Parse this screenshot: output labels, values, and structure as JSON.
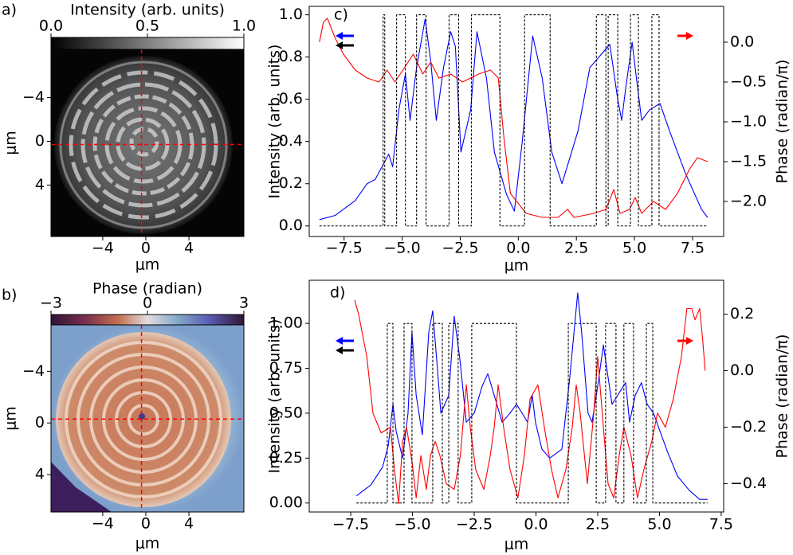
{
  "chart_data": [
    {
      "type": "image",
      "panel_label": "a)",
      "colorbar": {
        "label": "Intensity (arb. units)",
        "lim": [
          0,
          1
        ],
        "ticks": [
          {
            "value": 0,
            "label": "0.0"
          },
          0.5,
          {
            "value": 1,
            "label": "1.0"
          }
        ]
      },
      "xlabel": "μm",
      "ylabel": "μm",
      "xlim": [
        -8.8,
        9.1
      ],
      "xticks": [
        {
          "value": -4,
          "label": "−4"
        },
        0,
        4
      ],
      "ylim": [
        8.7,
        -8.4
      ],
      "yticks": [
        {
          "value": -4,
          "label": "−4"
        },
        0,
        4
      ],
      "crosshair": {
        "x": -0.4,
        "y": 0.3,
        "color": "#ff0000"
      }
    },
    {
      "type": "image",
      "panel_label": "b)",
      "colorbar": {
        "label": "Phase (radian)",
        "lim": [
          -3,
          3
        ],
        "ticks": [
          {
            "value": -3,
            "label": "−3"
          },
          0,
          3
        ]
      },
      "xlabel": "μm",
      "ylabel": "μm",
      "xlim": [
        -8.8,
        9.1
      ],
      "xticks": [
        {
          "value": -4,
          "label": "−4"
        },
        0,
        4
      ],
      "ylim": [
        6.9,
        -7.6
      ],
      "yticks": [
        {
          "value": -4,
          "label": "−4"
        },
        0,
        4
      ],
      "crosshair": {
        "x": -0.4,
        "y": -0.3,
        "color": "#ff0000"
      }
    },
    {
      "type": "line",
      "panel_label": "c)",
      "xlabel": "μm",
      "ylabel": "Intensity (arb. units)",
      "y2label": "Phase (radian/π)",
      "xlim": [
        -9.0,
        8.84
      ],
      "xticks": [
        {
          "value": -7.5,
          "label": "−7.5"
        },
        {
          "value": -5,
          "label": "−5.0"
        },
        {
          "value": -2.5,
          "label": "−2.5"
        },
        {
          "value": 0,
          "label": "0.0"
        },
        2.5,
        {
          "value": 5,
          "label": "5.0"
        },
        7.5
      ],
      "ylim": [
        -0.05,
        1.04
      ],
      "yticks": [
        {
          "value": 0,
          "label": "0.0"
        },
        0.2,
        0.4,
        0.6,
        0.8,
        {
          "value": 1,
          "label": "1.0"
        }
      ],
      "y2lim": [
        -2.44,
        0.45
      ],
      "y2ticks": [
        {
          "value": 0,
          "label": "0.0"
        },
        {
          "value": -0.5,
          "label": "−0.5"
        },
        {
          "value": -1,
          "label": "−1.0"
        },
        {
          "value": -1.5,
          "label": "−1.5"
        },
        {
          "value": -2,
          "label": "−2.0"
        }
      ],
      "series": [
        {
          "color": "#0000ff",
          "x": [
            -8.56,
            -7.88,
            -7.02,
            -6.51,
            -6.16,
            -5.58,
            -5.41,
            -5.14,
            -4.86,
            -4.66,
            -4.38,
            -4.01,
            -3.77,
            -3.53,
            -3.22,
            -2.91,
            -2.71,
            -2.47,
            -2.05,
            -1.78,
            -1.37,
            -1.03,
            -0.51,
            -0.17,
            0.17,
            0.62,
            1.03,
            1.44,
            1.88,
            2.57,
            3.08,
            3.94,
            4.28,
            4.45,
            4.62,
            4.9,
            5.14,
            5.31,
            5.65,
            6.1,
            6.51,
            7.19,
            7.88,
            8.15
          ],
          "values": [
            0.03,
            0.05,
            0.12,
            0.2,
            0.22,
            0.34,
            0.28,
            0.55,
            0.72,
            0.5,
            0.75,
            0.98,
            0.78,
            0.5,
            0.75,
            0.92,
            0.85,
            0.35,
            0.55,
            0.92,
            0.7,
            0.35,
            0.15,
            0.07,
            0.4,
            0.9,
            0.7,
            0.35,
            0.2,
            0.45,
            0.75,
            0.86,
            0.6,
            0.5,
            0.65,
            0.87,
            0.65,
            0.5,
            0.55,
            0.58,
            0.45,
            0.25,
            0.08,
            0.04
          ]
        },
        {
          "color": "#ff0000",
          "axis": "y2",
          "x": [
            -8.56,
            -8.39,
            -8.22,
            -7.88,
            -7.53,
            -7.02,
            -6.51,
            -5.99,
            -5.65,
            -5.31,
            -4.97,
            -4.52,
            -4.11,
            -3.77,
            -3.42,
            -2.91,
            -2.4,
            -1.71,
            -1.2,
            -0.86,
            -0.62,
            -0.34,
            0.34,
            1.03,
            1.71,
            2.12,
            2.4,
            3.25,
            3.77,
            4.11,
            4.38,
            4.79,
            5.03,
            5.31,
            5.82,
            6.34,
            6.85,
            7.36,
            7.71,
            8.15
          ],
          "values": [
            0.0,
            0.25,
            0.3,
            0.05,
            -0.15,
            -0.35,
            -0.45,
            -0.5,
            -0.35,
            -0.5,
            -0.35,
            -0.15,
            -0.4,
            -0.25,
            -0.45,
            -0.4,
            -0.5,
            -0.4,
            -0.35,
            -0.45,
            -1.2,
            -1.9,
            -2.15,
            -2.2,
            -2.2,
            -2.1,
            -2.2,
            -2.15,
            -2.1,
            -1.85,
            -2.15,
            -2.1,
            -1.95,
            -2.15,
            -2.0,
            -2.1,
            -1.9,
            -1.6,
            -1.45,
            -1.5
          ]
        },
        {
          "color": "#000000",
          "dashed": true,
          "x": [
            -8.56,
            -5.82,
            -5.82,
            -5.75,
            -5.75,
            -5.24,
            -5.24,
            -4.86,
            -4.86,
            -4.38,
            -4.38,
            -3.97,
            -3.97,
            -2.98,
            -2.98,
            -2.57,
            -2.57,
            -2.02,
            -2.02,
            -0.79,
            -0.79,
            0.27,
            0.27,
            1.37,
            1.37,
            3.36,
            3.36,
            3.77,
            3.77,
            3.87,
            3.87,
            4.28,
            4.28,
            4.83,
            4.83,
            5.17,
            5.17,
            5.75,
            5.75,
            6.06,
            6.06,
            8.15
          ],
          "values": [
            0,
            0,
            1,
            1,
            0,
            0,
            1,
            1,
            0,
            0,
            1,
            1,
            0,
            0,
            1,
            1,
            0,
            0,
            1,
            1,
            0,
            0,
            1,
            1,
            0,
            0,
            1,
            1,
            0,
            0,
            1,
            1,
            0,
            0,
            1,
            1,
            0,
            0,
            1,
            1,
            0,
            0
          ]
        }
      ]
    },
    {
      "type": "line",
      "panel_label": "d)",
      "xlabel": "μm",
      "ylabel": "Intensity (arb. units)",
      "y2label": "Phase (radian/π)",
      "xlim": [
        -9.18,
        7.6
      ],
      "xticks": [
        {
          "value": -7.5,
          "label": "−7.5"
        },
        {
          "value": -5,
          "label": "−5.0"
        },
        {
          "value": -2.5,
          "label": "−2.5"
        },
        {
          "value": 0,
          "label": "0.0"
        },
        2.5,
        {
          "value": 5,
          "label": "5.0"
        },
        7.5
      ],
      "ylim": [
        -0.05,
        1.24
      ],
      "yticks": [
        {
          "value": 0,
          "label": "0.00"
        },
        0.25,
        {
          "value": 0.5,
          "label": "0.50"
        },
        0.75,
        {
          "value": 1,
          "label": "1.00"
        }
      ],
      "y2lim": [
        -0.5,
        0.32
      ],
      "y2ticks": [
        0.2,
        {
          "value": 0,
          "label": "0.0"
        },
        {
          "value": -0.2,
          "label": "−0.2"
        },
        {
          "value": -0.4,
          "label": "−0.4"
        }
      ],
      "series": [
        {
          "color": "#0000ff",
          "x": [
            -7.27,
            -6.69,
            -6.21,
            -5.98,
            -5.79,
            -5.66,
            -5.4,
            -5.18,
            -5.02,
            -4.85,
            -4.6,
            -4.34,
            -4.18,
            -4.02,
            -3.85,
            -3.53,
            -3.31,
            -3.08,
            -2.82,
            -2.5,
            -2.18,
            -1.95,
            -1.69,
            -1.37,
            -1.05,
            -0.79,
            -0.56,
            -0.34,
            -0.15,
            -0.02,
            0.24,
            0.56,
            1.05,
            1.37,
            1.69,
            1.85,
            2.11,
            2.27,
            2.5,
            2.73,
            2.92,
            3.08,
            3.31,
            3.63,
            3.79,
            4.02,
            4.27,
            4.5,
            4.76,
            5.02,
            5.34,
            5.73,
            6.21,
            6.63,
            6.95
          ],
          "values": [
            0.04,
            0.1,
            0.2,
            0.32,
            0.55,
            0.4,
            0.25,
            0.5,
            0.95,
            0.6,
            0.38,
            0.95,
            1.07,
            0.8,
            0.5,
            0.6,
            1.04,
            0.8,
            0.45,
            0.5,
            0.65,
            0.72,
            0.6,
            0.45,
            0.5,
            0.55,
            0.5,
            0.45,
            0.6,
            0.45,
            0.3,
            0.25,
            0.3,
            0.7,
            1.17,
            0.95,
            0.5,
            0.45,
            0.65,
            0.88,
            0.7,
            0.55,
            0.6,
            0.67,
            0.45,
            0.6,
            0.67,
            0.55,
            0.5,
            0.4,
            0.28,
            0.15,
            0.07,
            0.02,
            0.02
          ]
        },
        {
          "color": "#ff0000",
          "axis": "y2",
          "x": [
            -7.34,
            -7.18,
            -6.85,
            -6.6,
            -6.27,
            -5.89,
            -5.73,
            -5.56,
            -5.4,
            -5.24,
            -5.02,
            -4.85,
            -4.66,
            -4.44,
            -4.27,
            -4.08,
            -3.89,
            -3.63,
            -3.31,
            -3.06,
            -2.82,
            -2.66,
            -2.44,
            -2.11,
            -1.85,
            -1.69,
            -1.53,
            -1.31,
            -1.05,
            -0.73,
            -0.47,
            -0.24,
            0.08,
            0.34,
            0.63,
            0.89,
            1.21,
            1.47,
            1.63,
            1.79,
            2.08,
            2.34,
            2.5,
            2.73,
            2.92,
            3.15,
            3.37,
            3.56,
            3.85,
            4.11,
            4.37,
            4.69,
            4.92,
            5.24,
            5.56,
            5.89,
            6.11,
            6.31,
            6.44,
            6.63,
            6.76,
            6.85
          ],
          "values": [
            0.25,
            0.2,
            0.05,
            -0.15,
            -0.22,
            -0.2,
            -0.35,
            -0.47,
            -0.25,
            -0.2,
            -0.32,
            -0.45,
            -0.3,
            -0.42,
            -0.3,
            -0.25,
            -0.3,
            -0.4,
            -0.42,
            -0.3,
            -0.05,
            -0.2,
            -0.35,
            -0.42,
            -0.3,
            -0.2,
            -0.05,
            -0.2,
            -0.35,
            -0.45,
            -0.3,
            -0.1,
            -0.05,
            -0.2,
            -0.35,
            -0.45,
            -0.35,
            -0.2,
            -0.05,
            -0.15,
            -0.4,
            -0.15,
            0.05,
            -0.2,
            -0.4,
            -0.45,
            -0.3,
            -0.2,
            -0.3,
            -0.45,
            -0.35,
            -0.25,
            -0.15,
            -0.2,
            -0.1,
            0.05,
            0.22,
            0.22,
            0.18,
            0.22,
            0.1,
            0.0
          ]
        },
        {
          "color": "#000000",
          "dashed": true,
          "x": [
            -7.27,
            -6.02,
            -6.02,
            -5.79,
            -5.79,
            -5.34,
            -5.34,
            -5.02,
            -5.02,
            -4.18,
            -4.18,
            -3.79,
            -3.79,
            -3.53,
            -3.53,
            -3.15,
            -3.15,
            -2.6,
            -2.6,
            -0.79,
            -0.79,
            1.31,
            1.31,
            2.44,
            2.44,
            2.82,
            2.82,
            3.24,
            3.24,
            3.56,
            3.56,
            3.95,
            3.95,
            4.47,
            4.47,
            4.73,
            4.73,
            6.95
          ],
          "values": [
            0,
            0,
            1,
            1,
            0,
            0,
            1,
            1,
            0,
            0,
            1,
            1,
            0,
            0,
            1,
            1,
            0,
            0,
            1,
            1,
            0,
            0,
            1,
            1,
            0,
            0,
            1,
            1,
            0,
            0,
            1,
            1,
            0,
            0,
            1,
            1,
            0,
            0
          ]
        }
      ]
    }
  ]
}
